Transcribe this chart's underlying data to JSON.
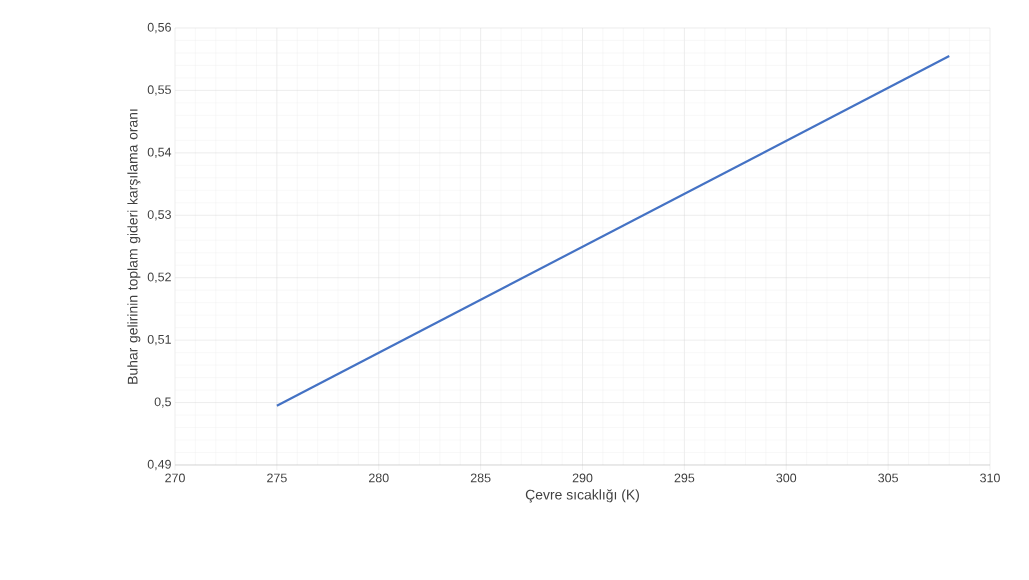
{
  "chart_data": {
    "type": "line",
    "xlabel": "Çevre sıcaklığı (K)",
    "ylabel": "Buhar gelirinin toplam gideri karşılama oranı",
    "x": [
      275,
      308
    ],
    "series": [
      {
        "color": "#4472c4",
        "values": [
          0.4995,
          0.5555
        ]
      }
    ],
    "xlim": [
      270,
      310
    ],
    "xticks": [
      270,
      275,
      280,
      285,
      290,
      295,
      300,
      305,
      310
    ],
    "ylim": [
      0.49,
      0.56
    ],
    "yticks": [
      {
        "value": 0.49,
        "label": "0,49"
      },
      {
        "value": 0.5,
        "label": "0,5"
      },
      {
        "value": 0.51,
        "label": "0,51"
      },
      {
        "value": 0.52,
        "label": "0,52"
      },
      {
        "value": 0.53,
        "label": "0,53"
      },
      {
        "value": 0.54,
        "label": "0,54"
      },
      {
        "value": 0.55,
        "label": "0,55"
      },
      {
        "value": 0.56,
        "label": "0,56"
      }
    ],
    "grid": true,
    "marker": "none",
    "line_style": "solid"
  }
}
